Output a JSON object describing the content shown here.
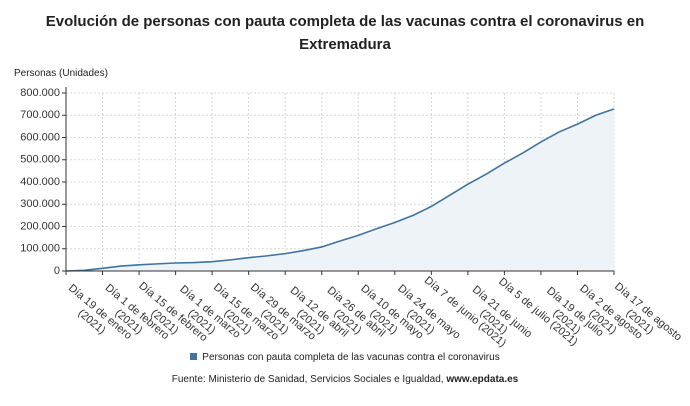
{
  "chart_data": {
    "type": "area",
    "title": "Evolución de personas con pauta completa de las vacunas contra el coronavirus en Extremadura",
    "y_label": "Personas (Unidades)",
    "categories": [
      "Día 19 de enero (2021)",
      null,
      "Día 1 de febrero (2021)",
      null,
      "Día 15 de febrero (2021)",
      null,
      "Día 1 de marzo (2021)",
      null,
      "Día 15 de marzo (2021)",
      null,
      "Día 29 de marzo (2021)",
      null,
      "Día 12 de abril (2021)",
      null,
      "Día 26 de abril (2021)",
      null,
      "Día 10 de mayo (2021)",
      null,
      "Día 24 de mayo (2021)",
      null,
      "Día 7 de junio (2021)",
      null,
      "Día 21 de junio (2021)",
      null,
      "Día 5 de julio (2021)",
      null,
      "Día 19 de julio (2021)",
      null,
      "Día 2 de agosto (2021)",
      null,
      "Día 17 de agosto (2021)"
    ],
    "series": [
      {
        "name": "Personas con pauta completa de las vacunas contra el coronavirus",
        "color": "#3f73a0",
        "values": [
          0,
          3000,
          12000,
          22000,
          28000,
          32000,
          36000,
          38000,
          42000,
          50000,
          60000,
          68000,
          78000,
          92000,
          108000,
          135000,
          160000,
          190000,
          218000,
          250000,
          290000,
          340000,
          390000,
          435000,
          485000,
          530000,
          580000,
          625000,
          660000,
          700000,
          728000
        ]
      }
    ],
    "ylim": [
      0,
      800000
    ],
    "yticks": [
      0,
      {
        "value": 100000,
        "label": "100.000"
      },
      {
        "value": 200000,
        "label": "200.000"
      },
      {
        "value": 300000,
        "label": "300.000"
      },
      {
        "value": 400000,
        "label": "400.000"
      },
      {
        "value": 500000,
        "label": "500.000"
      },
      {
        "value": 600000,
        "label": "600.000"
      },
      {
        "value": 700000,
        "label": "700.000"
      },
      {
        "value": 800000,
        "label": "800.000"
      }
    ],
    "grid": true,
    "area_color": "#eef3f8",
    "source": "Fuente: Ministerio de Sanidad, Servicios Sociales e Igualdad,",
    "source_link": "www.epdata.es"
  }
}
